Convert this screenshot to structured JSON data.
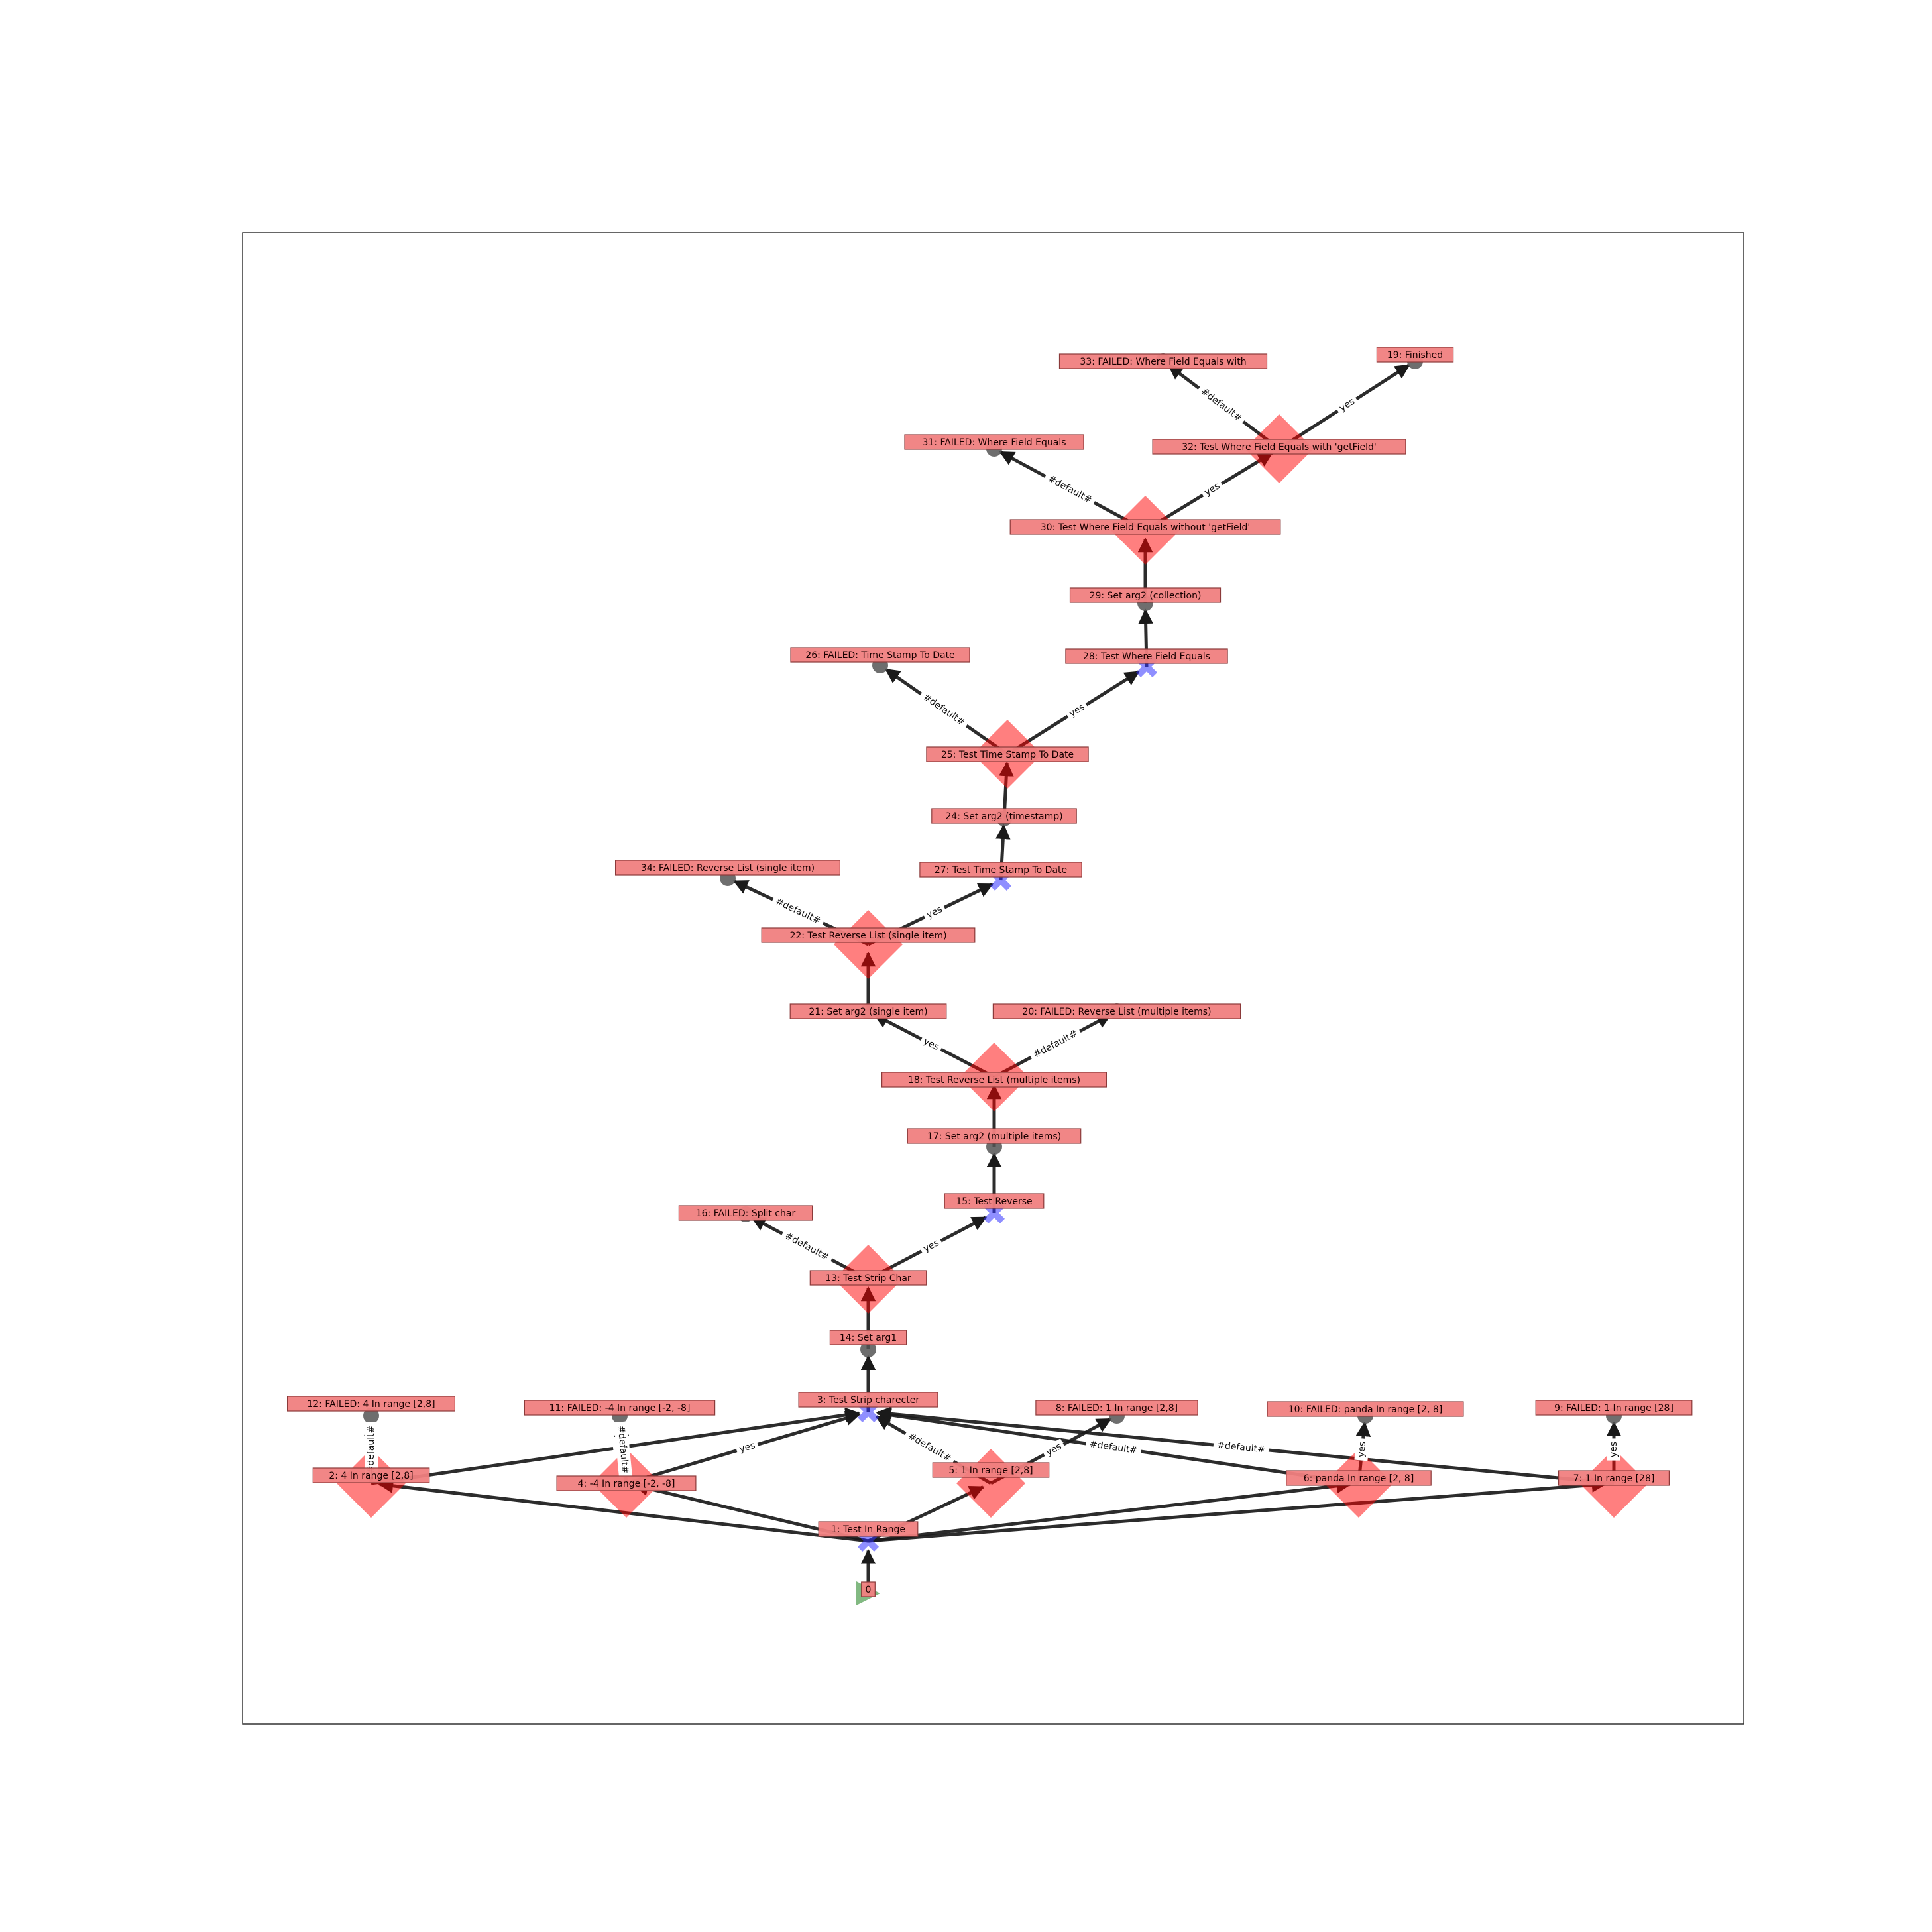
{
  "nodes": [
    {
      "id": "0",
      "label": "0",
      "shape": "start"
    },
    {
      "id": "1",
      "label": "1: Test In Range",
      "shape": "cross"
    },
    {
      "id": "2",
      "label": "2: 4 In range [2,8]",
      "shape": "diamond"
    },
    {
      "id": "3",
      "label": "3: Test Strip charecter",
      "shape": "cross"
    },
    {
      "id": "4",
      "label": "4: -4 In range [-2, -8]",
      "shape": "diamond"
    },
    {
      "id": "5",
      "label": "5: 1 In range [2,8]",
      "shape": "diamond"
    },
    {
      "id": "6",
      "label": "6: panda In range [2, 8]",
      "shape": "diamond"
    },
    {
      "id": "7",
      "label": "7: 1 In range [28]",
      "shape": "diamond"
    },
    {
      "id": "8",
      "label": "8: FAILED: 1 In range [2,8]",
      "shape": "circle"
    },
    {
      "id": "9",
      "label": "9: FAILED: 1 In range [28]",
      "shape": "circle"
    },
    {
      "id": "10",
      "label": "10: FAILED: panda In range [2, 8]",
      "shape": "circle"
    },
    {
      "id": "11",
      "label": "11: FAILED: -4 In range [-2, -8]",
      "shape": "circle"
    },
    {
      "id": "12",
      "label": "12: FAILED: 4 In range [2,8]",
      "shape": "circle"
    },
    {
      "id": "13",
      "label": "13: Test Strip Char",
      "shape": "diamond"
    },
    {
      "id": "14",
      "label": "14: Set arg1",
      "shape": "circle"
    },
    {
      "id": "15",
      "label": "15: Test Reverse",
      "shape": "cross"
    },
    {
      "id": "16",
      "label": "16: FAILED: Split char",
      "shape": "circle"
    },
    {
      "id": "17",
      "label": "17: Set arg2 (multiple items)",
      "shape": "circle"
    },
    {
      "id": "18",
      "label": "18: Test Reverse List (multiple items)",
      "shape": "diamond"
    },
    {
      "id": "19",
      "label": "19: Finished",
      "shape": "circle"
    },
    {
      "id": "20",
      "label": "20: FAILED: Reverse List  (multiple items)",
      "shape": "circle"
    },
    {
      "id": "21",
      "label": "21: Set arg2 (single item)",
      "shape": "circle"
    },
    {
      "id": "22",
      "label": "22: Test Reverse List  (single item)",
      "shape": "diamond"
    },
    {
      "id": "24",
      "label": "24: Set arg2 (timestamp)",
      "shape": "circle"
    },
    {
      "id": "25",
      "label": "25: Test Time Stamp To Date",
      "shape": "diamond"
    },
    {
      "id": "26",
      "label": "26: FAILED: Time Stamp To Date",
      "shape": "circle"
    },
    {
      "id": "27",
      "label": "27: Test Time Stamp To Date",
      "shape": "cross"
    },
    {
      "id": "28",
      "label": "28: Test Where Field Equals",
      "shape": "cross"
    },
    {
      "id": "29",
      "label": "29: Set arg2 (collection)",
      "shape": "circle"
    },
    {
      "id": "30",
      "label": "30: Test Where Field Equals without 'getField'",
      "shape": "diamond"
    },
    {
      "id": "31",
      "label": "31: FAILED: Where Field Equals",
      "shape": "circle"
    },
    {
      "id": "32",
      "label": "32: Test Where Field Equals with 'getField'",
      "shape": "diamond"
    },
    {
      "id": "33",
      "label": "33: FAILED: Where Field Equals with",
      "shape": "circle"
    },
    {
      "id": "34",
      "label": "34: FAILED: Reverse List (single item)",
      "shape": "circle"
    }
  ],
  "edges": [
    {
      "from": "0",
      "to": "1",
      "label": ""
    },
    {
      "from": "1",
      "to": "2",
      "label": ""
    },
    {
      "from": "1",
      "to": "4",
      "label": ""
    },
    {
      "from": "1",
      "to": "5",
      "label": ""
    },
    {
      "from": "1",
      "to": "6",
      "label": ""
    },
    {
      "from": "1",
      "to": "7",
      "label": ""
    },
    {
      "from": "2",
      "to": "3",
      "label": ")"
    },
    {
      "from": "2",
      "to": "12",
      "label": "#default#"
    },
    {
      "from": "4",
      "to": "3",
      "label": "yes"
    },
    {
      "from": "4",
      "to": "11",
      "label": "#default#"
    },
    {
      "from": "5",
      "to": "3",
      "label": "#default#"
    },
    {
      "from": "5",
      "to": "8",
      "label": "yes"
    },
    {
      "from": "6",
      "to": "3",
      "label": "#default#"
    },
    {
      "from": "6",
      "to": "10",
      "label": "yes"
    },
    {
      "from": "7",
      "to": "3",
      "label": "#default#"
    },
    {
      "from": "7",
      "to": "9",
      "label": "yes"
    },
    {
      "from": "3",
      "to": "14",
      "label": ""
    },
    {
      "from": "14",
      "to": "13",
      "label": ""
    },
    {
      "from": "13",
      "to": "16",
      "label": "#default#"
    },
    {
      "from": "13",
      "to": "15",
      "label": "yes"
    },
    {
      "from": "15",
      "to": "17",
      "label": ""
    },
    {
      "from": "17",
      "to": "18",
      "label": ""
    },
    {
      "from": "18",
      "to": "21",
      "label": "yes"
    },
    {
      "from": "18",
      "to": "20",
      "label": "#default#"
    },
    {
      "from": "21",
      "to": "22",
      "label": ""
    },
    {
      "from": "22",
      "to": "34",
      "label": "#default#"
    },
    {
      "from": "22",
      "to": "27",
      "label": "yes"
    },
    {
      "from": "27",
      "to": "24",
      "label": ""
    },
    {
      "from": "24",
      "to": "25",
      "label": ""
    },
    {
      "from": "25",
      "to": "26",
      "label": "#default#"
    },
    {
      "from": "25",
      "to": "28",
      "label": "yes"
    },
    {
      "from": "28",
      "to": "29",
      "label": ""
    },
    {
      "from": "29",
      "to": "30",
      "label": ""
    },
    {
      "from": "30",
      "to": "31",
      "label": "#default#"
    },
    {
      "from": "30",
      "to": "32",
      "label": "yes"
    },
    {
      "from": "32",
      "to": "33",
      "label": "#default#"
    },
    {
      "from": "32",
      "to": "19",
      "label": "yes"
    }
  ],
  "colors": {
    "node_label_bg": "#f08080",
    "node_label_border": "#8b3a3a",
    "diamond": "#ff0000",
    "cross": "#3333ff",
    "circle": "#555555",
    "start": "#2e8b2e",
    "edge": "#1a1a1a"
  }
}
